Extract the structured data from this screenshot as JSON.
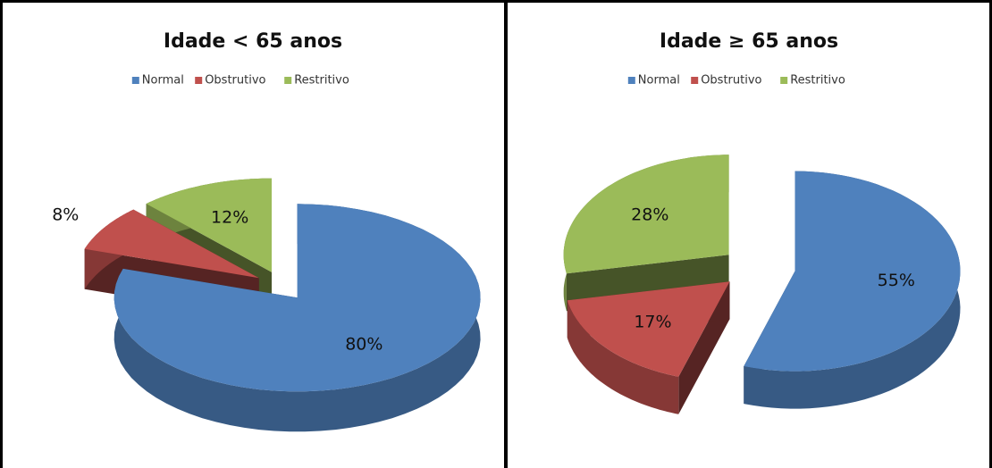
{
  "chart_data": [
    {
      "type": "pie",
      "title": "Idade < 65 anos",
      "categories": [
        "Normal",
        "Obstrutivo",
        "Restritivo"
      ],
      "values": [
        80,
        8,
        12
      ],
      "value_labels": [
        "80%",
        "8%",
        "12%"
      ],
      "colors": [
        "#4f81bd",
        "#c0504d",
        "#9bbb59"
      ]
    },
    {
      "type": "pie",
      "title": "Idade ≥ 65 anos",
      "categories": [
        "Normal",
        "Obstrutivo",
        "Restritivo"
      ],
      "values": [
        55,
        17,
        28
      ],
      "value_labels": [
        "55%",
        "17%",
        "28%"
      ],
      "colors": [
        "#4f81bd",
        "#c0504d",
        "#9bbb59"
      ]
    }
  ]
}
